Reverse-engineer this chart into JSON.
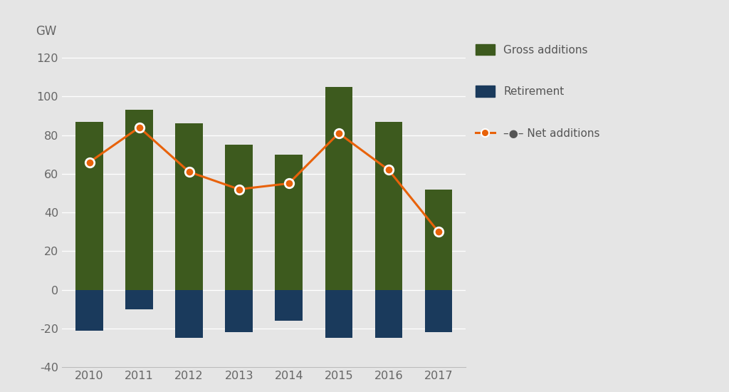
{
  "years": [
    2010,
    2011,
    2012,
    2013,
    2014,
    2015,
    2016,
    2017
  ],
  "gross_additions": [
    87,
    93,
    86,
    75,
    70,
    105,
    87,
    52
  ],
  "retirements": [
    -21,
    -10,
    -25,
    -22,
    -16,
    -25,
    -25,
    -22
  ],
  "net_additions": [
    66,
    84,
    61,
    52,
    55,
    81,
    62,
    30
  ],
  "gross_color": "#3d5a1e",
  "retirement_color": "#1a3a5c",
  "net_color": "#e8620a",
  "background_color": "#e5e5e5",
  "ylabel": "GW",
  "ylim": [
    -40,
    130
  ],
  "yticks": [
    -40,
    -20,
    0,
    20,
    40,
    60,
    80,
    100,
    120
  ],
  "legend_gross": "Gross additions",
  "legend_retirement": "Retirement",
  "legend_net": "Net additions"
}
